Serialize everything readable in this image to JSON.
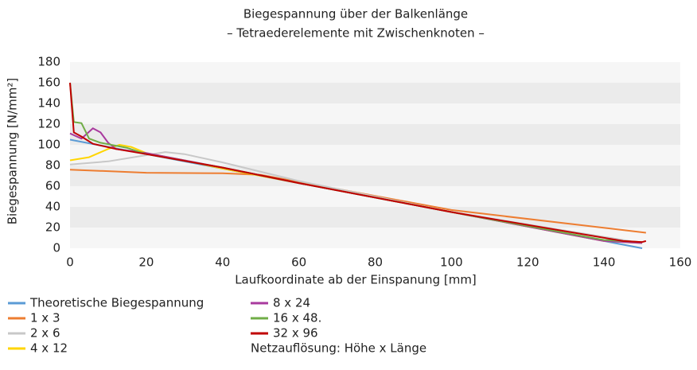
{
  "chart_data": {
    "type": "line",
    "title": "Biegespannung über der Balkenlänge",
    "subtitle": "– Tetraederelemente mit Zwischenknoten –",
    "y_label": "Biegespannung [N/mm²]",
    "x_label": "Laufkoordinate ab der Einspanung [mm]",
    "annotation": "Netzauflösung: Höhe x Länge",
    "xlim": [
      0,
      160
    ],
    "xticks": [
      0,
      20,
      40,
      60,
      80,
      100,
      120,
      140,
      160
    ],
    "ylim": [
      0,
      180
    ],
    "yticks": [
      0,
      20,
      40,
      60,
      80,
      100,
      120,
      140,
      160,
      180
    ],
    "grid": true,
    "series": [
      {
        "name": "Theoretische Biegespannung",
        "color": "#5b9bd5",
        "x": [
          0,
          150
        ],
        "values": [
          105,
          0
        ]
      },
      {
        "name": "1 x 3",
        "color": "#ed7d31",
        "x": [
          0,
          20,
          40,
          50,
          100,
          151
        ],
        "values": [
          76,
          73,
          72.5,
          71,
          37,
          15
        ]
      },
      {
        "name": "2 x 6",
        "color": "#c8c8c8",
        "x": [
          0,
          10,
          20,
          25,
          30,
          40,
          60,
          100,
          150
        ],
        "values": [
          81,
          84,
          90,
          93,
          91,
          83,
          65,
          35,
          5
        ]
      },
      {
        "name": "4 x 12",
        "color": "#ffd500",
        "x": [
          0,
          5,
          10,
          13,
          16,
          20,
          30,
          40,
          60,
          100,
          140,
          150
        ],
        "values": [
          85,
          88,
          96,
          100,
          98,
          92,
          85,
          77,
          63,
          35,
          7,
          5
        ]
      },
      {
        "name": "8 x 24",
        "color": "#a93a9e",
        "x": [
          0,
          3,
          6,
          8,
          10,
          12,
          20,
          40,
          60,
          100,
          140,
          150
        ],
        "values": [
          111,
          106,
          116,
          112,
          102,
          96,
          92,
          78,
          63,
          35,
          7,
          5
        ]
      },
      {
        "name": "16 x 48.",
        "color": "#70ad47",
        "x": [
          0,
          1,
          3,
          5,
          8,
          15,
          20,
          40,
          60,
          100,
          140,
          150
        ],
        "values": [
          160,
          122,
          121,
          106,
          102,
          97,
          91,
          78,
          63,
          35,
          8,
          6
        ]
      },
      {
        "name": "32 x 96",
        "color": "#c00000",
        "x": [
          0,
          1,
          3,
          6,
          12,
          20,
          40,
          60,
          100,
          145,
          150,
          151
        ],
        "values": [
          160,
          112,
          108,
          101,
          96,
          91,
          78,
          63,
          35,
          7,
          6,
          7
        ]
      }
    ]
  }
}
